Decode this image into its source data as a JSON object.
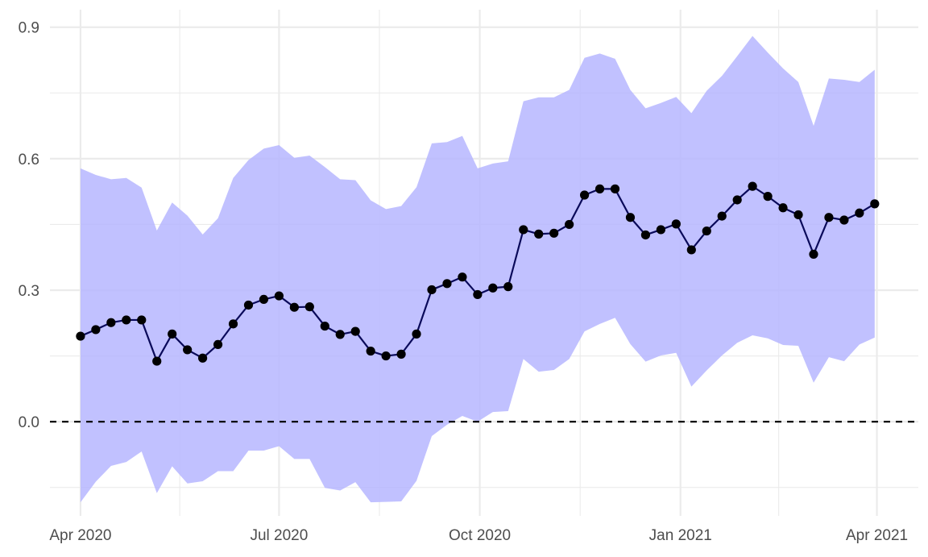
{
  "chart_data": {
    "type": "line",
    "title": "",
    "xlabel": "",
    "ylabel": "",
    "x_ticks": [
      {
        "date": "2020-04-01",
        "label": "Apr 2020"
      },
      {
        "date": "2020-07-01",
        "label": "Jul 2020"
      },
      {
        "date": "2020-10-01",
        "label": "Oct 2020"
      },
      {
        "date": "2021-01-01",
        "label": "Jan 2021"
      },
      {
        "date": "2021-04-01",
        "label": "Apr 2021"
      }
    ],
    "y_ticks": [
      {
        "value": 0.0,
        "label": "0.0"
      },
      {
        "value": 0.3,
        "label": "0.3"
      },
      {
        "value": 0.6,
        "label": "0.6"
      },
      {
        "value": 0.9,
        "label": "0.9"
      }
    ],
    "xlim": [
      "2020-03-18",
      "2021-04-20"
    ],
    "ylim": [
      -0.215,
      0.94
    ],
    "grid": true,
    "reference_line": {
      "y": 0,
      "style": "dashed",
      "color": "#000000"
    },
    "colors": {
      "line": "#0a0a5a",
      "points": "#000000",
      "band": "#b3b3ff",
      "grid": "#ebebeb"
    },
    "series": [
      {
        "x": [
          "2020-04-01",
          "2020-04-08",
          "2020-04-15",
          "2020-04-22",
          "2020-04-29",
          "2020-05-06",
          "2020-05-13",
          "2020-05-20",
          "2020-05-27",
          "2020-06-03",
          "2020-06-10",
          "2020-06-17",
          "2020-06-24",
          "2020-07-01",
          "2020-07-08",
          "2020-07-15",
          "2020-07-22",
          "2020-07-29",
          "2020-08-05",
          "2020-08-12",
          "2020-08-19",
          "2020-08-26",
          "2020-09-02",
          "2020-09-09",
          "2020-09-16",
          "2020-09-23",
          "2020-09-30",
          "2020-10-07",
          "2020-10-14",
          "2020-10-21",
          "2020-10-28",
          "2020-11-04",
          "2020-11-11",
          "2020-11-18",
          "2020-11-25",
          "2020-12-02",
          "2020-12-09",
          "2020-12-16",
          "2020-12-23",
          "2020-12-30",
          "2021-01-06",
          "2021-01-13",
          "2021-01-20",
          "2021-01-27",
          "2021-02-03",
          "2021-02-10",
          "2021-02-17",
          "2021-02-24",
          "2021-03-03",
          "2021-03-10",
          "2021-03-17",
          "2021-03-24",
          "2021-03-31"
        ],
        "y": [
          0.195,
          0.21,
          0.226,
          0.232,
          0.232,
          0.138,
          0.2,
          0.164,
          0.145,
          0.176,
          0.223,
          0.266,
          0.279,
          0.287,
          0.261,
          0.262,
          0.218,
          0.199,
          0.206,
          0.161,
          0.15,
          0.154,
          0.2,
          0.301,
          0.315,
          0.33,
          0.29,
          0.305,
          0.308,
          0.438,
          0.428,
          0.43,
          0.45,
          0.517,
          0.531,
          0.531,
          0.466,
          0.426,
          0.438,
          0.451,
          0.392,
          0.435,
          0.469,
          0.506,
          0.537,
          0.514,
          0.488,
          0.472,
          0.382,
          0.466,
          0.46,
          0.476,
          0.497
        ],
        "lower": [
          -0.184,
          -0.137,
          -0.101,
          -0.092,
          -0.068,
          -0.163,
          -0.102,
          -0.141,
          -0.136,
          -0.113,
          -0.113,
          -0.066,
          -0.066,
          -0.056,
          -0.085,
          -0.085,
          -0.151,
          -0.157,
          -0.138,
          -0.184,
          -0.183,
          -0.182,
          -0.135,
          -0.033,
          -0.007,
          0.013,
          0.0,
          0.022,
          0.024,
          0.143,
          0.114,
          0.118,
          0.143,
          0.206,
          0.223,
          0.237,
          0.177,
          0.137,
          0.151,
          0.157,
          0.08,
          0.117,
          0.151,
          0.18,
          0.197,
          0.19,
          0.175,
          0.173,
          0.089,
          0.147,
          0.138,
          0.176,
          0.192
        ],
        "upper": [
          0.578,
          0.563,
          0.553,
          0.556,
          0.534,
          0.436,
          0.5,
          0.47,
          0.427,
          0.464,
          0.556,
          0.597,
          0.623,
          0.631,
          0.602,
          0.607,
          0.581,
          0.553,
          0.551,
          0.505,
          0.485,
          0.492,
          0.535,
          0.635,
          0.638,
          0.652,
          0.578,
          0.589,
          0.594,
          0.731,
          0.74,
          0.74,
          0.757,
          0.83,
          0.84,
          0.828,
          0.757,
          0.715,
          0.727,
          0.741,
          0.704,
          0.755,
          0.789,
          0.834,
          0.88,
          0.842,
          0.806,
          0.775,
          0.675,
          0.783,
          0.78,
          0.775,
          0.803
        ]
      }
    ]
  }
}
